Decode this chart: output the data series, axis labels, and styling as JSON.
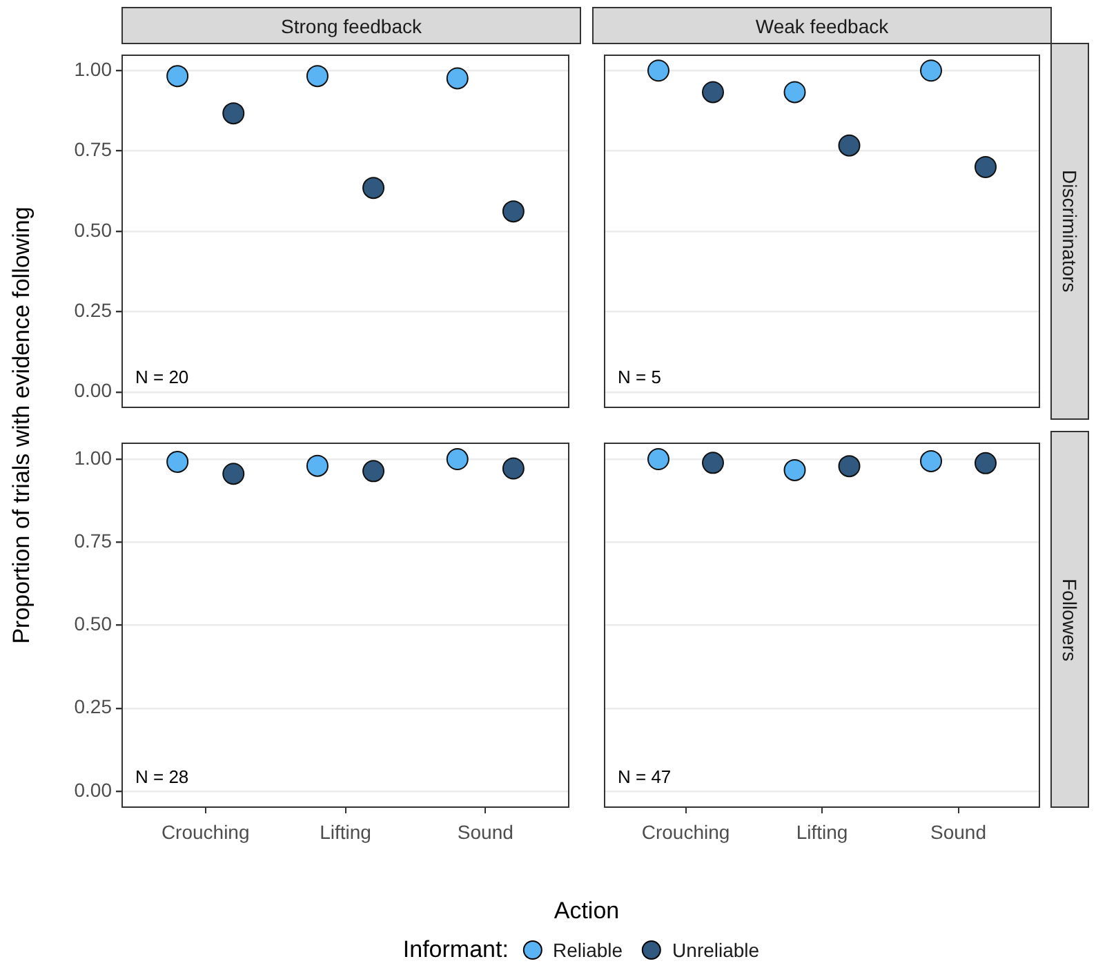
{
  "chart_data": [
    {
      "type": "scatter",
      "title": "Strong feedback",
      "ylabel": "Proportion of trials with evidence following",
      "legend": "bottom",
      "legend_title": "Informant:",
      "categories": [
        "Crouching",
        "Lifting",
        "Sound"
      ],
      "series": [
        {
          "name": "Reliable",
          "color": "#5ab4f4",
          "values": [
            0.983,
            0.983,
            0.976
          ]
        },
        {
          "name": "Unreliable",
          "color": "#31597f",
          "values": [
            0.867,
            0.635,
            0.562
          ]
        }
      ],
      "ylim": [
        -0.05,
        1.05
      ],
      "yticks": [
        {
          "value": 0,
          "label": "0.00"
        },
        {
          "value": 0.25,
          "label": "0.25"
        },
        {
          "value": 0.5,
          "label": "0.50"
        },
        {
          "value": 0.75,
          "label": "0.75"
        },
        {
          "value": 1,
          "label": "1.00"
        }
      ],
      "grid": "y",
      "marker": "circle",
      "tick_labels": "y",
      "annotations": [
        "N = 20"
      ]
    },
    {
      "type": "scatter",
      "title": "Weak feedback",
      "y2label": "Discriminators",
      "categories": [
        "Crouching",
        "Lifting",
        "Sound"
      ],
      "series": [
        {
          "color": "#5ab4f4",
          "values": [
            1.0,
            0.933,
            1.0
          ]
        },
        {
          "color": "#31597f",
          "values": [
            0.933,
            0.767,
            0.7
          ]
        }
      ],
      "ylim": [
        -0.05,
        1.05
      ],
      "yticks": [
        0,
        0.25,
        0.5,
        0.75,
        1
      ],
      "grid": "y",
      "marker": "circle",
      "tick_labels": false,
      "annotations": [
        "N = 5"
      ]
    },
    {
      "type": "scatter",
      "xlabel": "Action",
      "categories": [
        "Crouching",
        "Lifting",
        "Sound"
      ],
      "series": [
        {
          "color": "#5ab4f4",
          "values": [
            0.992,
            0.98,
            1.0
          ]
        },
        {
          "color": "#31597f",
          "values": [
            0.956,
            0.964,
            0.972
          ]
        }
      ],
      "ylim": [
        -0.05,
        1.05
      ],
      "yticks": [
        {
          "value": 0,
          "label": "0.00"
        },
        {
          "value": 0.25,
          "label": "0.25"
        },
        {
          "value": 0.5,
          "label": "0.50"
        },
        {
          "value": 0.75,
          "label": "0.75"
        },
        {
          "value": 1,
          "label": "1.00"
        }
      ],
      "grid": "y",
      "marker": "circle",
      "annotations": [
        "N = 28"
      ]
    },
    {
      "type": "scatter",
      "y2label": "Followers",
      "categories": [
        "Crouching",
        "Lifting",
        "Sound"
      ],
      "series": [
        {
          "color": "#5ab4f4",
          "values": [
            1.0,
            0.967,
            0.994
          ]
        },
        {
          "color": "#31597f",
          "values": [
            0.989,
            0.979,
            0.988
          ]
        }
      ],
      "ylim": [
        -0.05,
        1.05
      ],
      "yticks": [
        0,
        0.25,
        0.5,
        0.75,
        1
      ],
      "grid": "y",
      "marker": "circle",
      "tick_labels": "x",
      "annotations": [
        "N = 47"
      ]
    }
  ]
}
